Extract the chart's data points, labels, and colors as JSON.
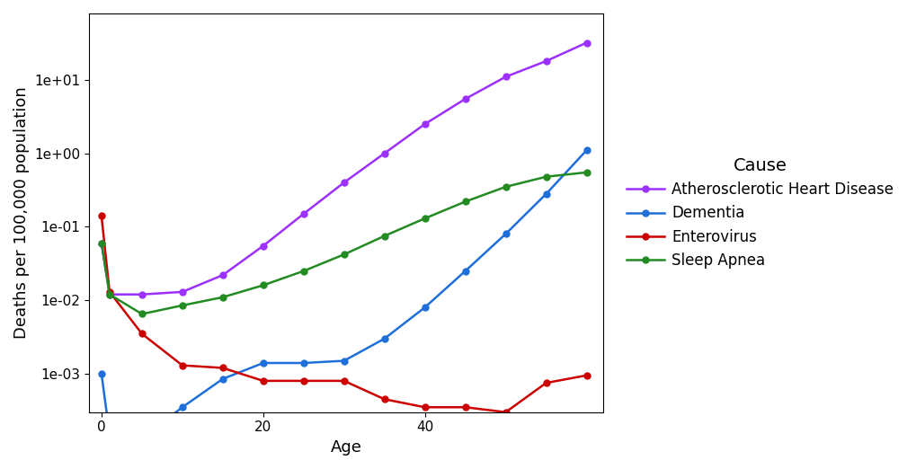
{
  "ages": [
    0,
    1,
    5,
    10,
    15,
    20,
    25,
    30,
    35,
    40,
    45,
    50,
    55,
    60
  ],
  "atherosclerotic": [
    0.06,
    0.012,
    0.012,
    0.013,
    0.022,
    0.055,
    0.15,
    0.4,
    1.0,
    2.5,
    5.5,
    11.0,
    18.0,
    32.0
  ],
  "dementia": [
    0.001,
    0.00015,
    0.00013,
    0.00035,
    0.00085,
    0.0014,
    0.0014,
    0.0015,
    0.003,
    0.008,
    0.025,
    0.08,
    0.28,
    1.1
  ],
  "enterovirus": [
    0.14,
    0.013,
    0.0035,
    0.0013,
    0.0012,
    0.0008,
    0.0008,
    0.0008,
    0.00045,
    0.00035,
    0.00035,
    0.0003,
    0.00075,
    0.00095
  ],
  "sleep_apnea": [
    0.06,
    0.012,
    0.0065,
    0.0085,
    0.011,
    0.016,
    0.025,
    0.042,
    0.075,
    0.13,
    0.22,
    0.35,
    0.48,
    0.55
  ],
  "colors": {
    "atherosclerotic": "#9B30FF",
    "dementia": "#1E6FD9",
    "enterovirus": "#CC0000",
    "sleep_apnea": "#228B22"
  },
  "legend_title": "Cause",
  "legend_labels": {
    "atherosclerotic": "Atherosclerotic Heart Disease",
    "dementia": "Dementia",
    "enterovirus": "Enterovirus",
    "sleep_apnea": "Sleep Apnea"
  },
  "xlabel": "Age",
  "ylabel": "Deaths per 100,000 population",
  "ylim": [
    0.0003,
    80
  ],
  "xlim": [
    -1.5,
    62
  ],
  "xticks": [
    0,
    20,
    40
  ],
  "yticks": [
    0.001,
    0.01,
    0.1,
    1.0,
    10.0
  ],
  "ytick_labels": [
    "1e-03",
    "1e-02",
    "1e-01",
    "1e+00",
    "1e+01"
  ],
  "background_color": "#FFFFFF",
  "label_fontsize": 13,
  "legend_fontsize": 12,
  "tick_fontsize": 11
}
